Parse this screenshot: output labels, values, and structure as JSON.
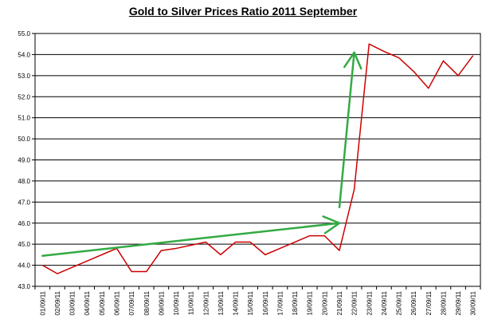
{
  "chart_data": {
    "type": "line",
    "title": "Gold to Silver Prices Ratio 2011 September",
    "xlabel": "",
    "ylabel": "",
    "ylim": [
      43.0,
      55.0
    ],
    "yticks": [
      "43.0",
      "44.0",
      "45.0",
      "46.0",
      "47.0",
      "48.0",
      "49.0",
      "50.0",
      "51.0",
      "52.0",
      "53.0",
      "54.0",
      "55.0"
    ],
    "grid": true,
    "legend": "none",
    "x": [
      "01/09/11",
      "02/09/11",
      "03/09/11",
      "04/09/11",
      "05/09/11",
      "06/09/11",
      "07/09/11",
      "08/09/11",
      "09/09/11",
      "10/09/11",
      "11/09/11",
      "12/09/11",
      "13/09/11",
      "14/09/11",
      "15/09/11",
      "16/09/11",
      "17/09/11",
      "18/09/11",
      "19/09/11",
      "20/09/11",
      "21/09/11",
      "22/09/11",
      "23/09/11",
      "24/09/11",
      "25/09/11",
      "26/09/11",
      "27/09/11",
      "28/09/11",
      "29/09/11",
      "30/09/11"
    ],
    "series": [
      {
        "color": "#cc0000",
        "values": [
          44.0,
          43.6,
          43.9,
          44.2,
          44.5,
          44.8,
          43.7,
          43.7,
          44.7,
          44.8,
          44.95,
          45.1,
          44.5,
          45.1,
          45.1,
          44.5,
          44.8,
          45.1,
          45.4,
          45.4,
          44.7,
          47.6,
          54.5,
          54.15,
          53.85,
          53.2,
          52.4,
          53.7,
          53.0,
          53.95
        ]
      }
    ],
    "annotations": [
      {
        "type": "arrow",
        "color": "#33aa44",
        "from": [
          "01/09/11",
          44.45
        ],
        "to": [
          "21/09/11",
          46.0
        ]
      },
      {
        "type": "arrow",
        "color": "#33aa44",
        "from": [
          "21/09/11",
          46.75
        ],
        "to": [
          "22/09/11",
          54.1
        ]
      }
    ],
    "colors": {
      "line": "#cc0000",
      "arrow": "#33aa44",
      "grid": "#000000",
      "axis": "#000000"
    }
  }
}
